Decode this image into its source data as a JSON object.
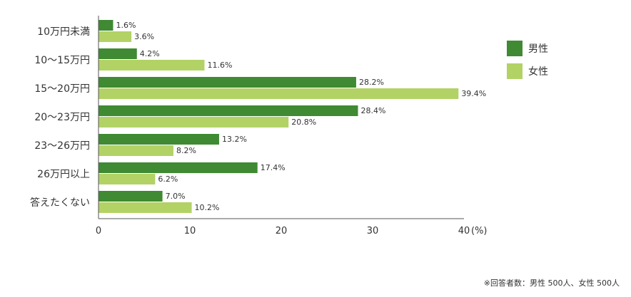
{
  "chart_data": {
    "type": "bar",
    "orientation": "horizontal",
    "categories": [
      "10万円未満",
      "10～15万円",
      "15～20万円",
      "20～23万円",
      "23～26万円",
      "26万円以上",
      "答えたくない"
    ],
    "series": [
      {
        "name": "男性",
        "color": "#3f8a32",
        "values": [
          1.6,
          4.2,
          28.2,
          28.4,
          13.2,
          17.4,
          7.0
        ]
      },
      {
        "name": "女性",
        "color": "#b2d266",
        "values": [
          3.6,
          11.6,
          39.4,
          20.8,
          8.2,
          6.2,
          10.2
        ]
      }
    ],
    "value_labels": [
      [
        "1.6%",
        "4.2%",
        "28.2%",
        "28.4%",
        "13.2%",
        "17.4%",
        "7.0%"
      ],
      [
        "3.6%",
        "11.6%",
        "39.4%",
        "20.8%",
        "8.2%",
        "6.2%",
        "10.2%"
      ]
    ],
    "xlim": [
      0,
      40
    ],
    "xticks": [
      0,
      10,
      20,
      30,
      40
    ],
    "xtick_labels": [
      "0",
      "10",
      "20",
      "30",
      "40"
    ],
    "unit_label": "(%)",
    "legend_position": "top-right"
  },
  "footnote": "※回答者数：男性 500人、女性 500人"
}
